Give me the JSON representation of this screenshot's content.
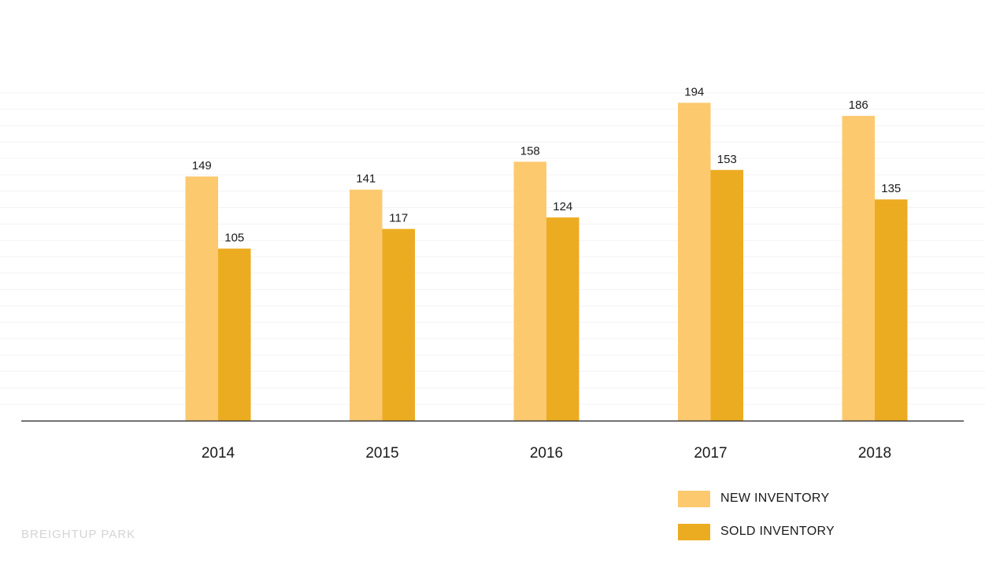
{
  "chart_data": {
    "type": "bar",
    "categories": [
      "2014",
      "2015",
      "2016",
      "2017",
      "2018"
    ],
    "series": [
      {
        "name": "NEW INVENTORY",
        "values": [
          149,
          141,
          158,
          194,
          186
        ],
        "color": "#fdc96f"
      },
      {
        "name": "SOLD INVENTORY",
        "values": [
          105,
          117,
          124,
          153,
          135
        ],
        "color": "#ecac22"
      }
    ],
    "title": "",
    "xlabel": "",
    "ylabel": "",
    "ylim": [
      0,
      200
    ],
    "grid": true,
    "legend_position": "bottom-right",
    "data_labels": true
  },
  "legend": {
    "items": [
      {
        "label": "NEW INVENTORY",
        "color": "#fdc96f"
      },
      {
        "label": "SOLD INVENTORY",
        "color": "#ecac22"
      }
    ]
  },
  "watermark": "BREIGHTUP PARK"
}
